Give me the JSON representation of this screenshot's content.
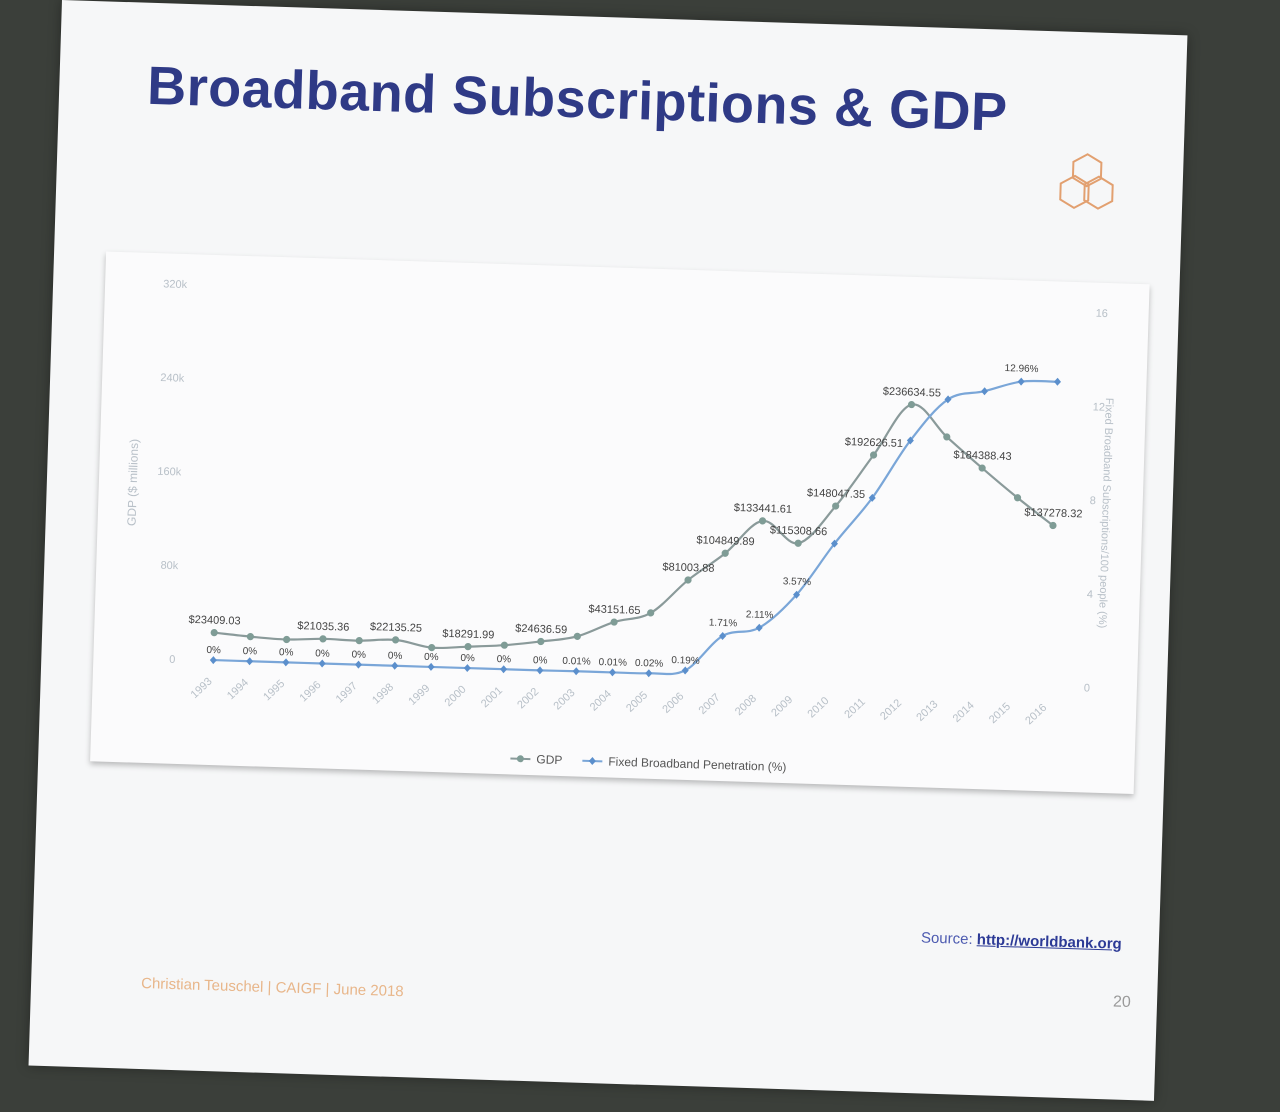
{
  "slide": {
    "title": "Broadband Subscriptions & GDP",
    "source_label": "Source:",
    "source_link": "http://worldbank.org",
    "footer": "Christian Teuschel | CAIGF | June 2018",
    "page_number": "20"
  },
  "colors": {
    "title": "#2f3a86",
    "gdp_line": "#8a9a9a",
    "gdp_marker": "#7f9c96",
    "broadband_line": "#7aa6d8",
    "broadband_marker": "#5b8fcc",
    "logo": "#e2a070"
  },
  "chart_data": {
    "type": "line",
    "title": "",
    "categories": [
      "1993",
      "1994",
      "1995",
      "1996",
      "1997",
      "1998",
      "1999",
      "2000",
      "2001",
      "2002",
      "2003",
      "2004",
      "2005",
      "2006",
      "2007",
      "2008",
      "2009",
      "2010",
      "2011",
      "2012",
      "2013",
      "2014",
      "2015",
      "2016"
    ],
    "y_left": {
      "label": "GDP ($ millions)",
      "ticks": [
        "0",
        "80k",
        "160k",
        "240k",
        "320k"
      ],
      "range": [
        0,
        320000
      ]
    },
    "y_right": {
      "label": "Fixed Broadband Subscriptions/100 people (%)",
      "ticks": [
        "0",
        "4",
        "8",
        "12",
        "16"
      ],
      "range": [
        0,
        16
      ]
    },
    "legend_position": "bottom",
    "grid": false,
    "series": [
      {
        "name": "GDP",
        "axis": "left",
        "values": [
          23409.03,
          21000,
          19500,
          21035.36,
          20500,
          22135.25,
          16500,
          18291.99,
          20500,
          24636.59,
          30000,
          43151.65,
          52000,
          81003.88,
          104849.89,
          133441.61,
          115308.66,
          148047.35,
          192626.51,
          236634.55,
          210000,
          184388.43,
          160000,
          137278.32
        ],
        "labels": [
          "$23409.03",
          "",
          "",
          "$21035.36",
          "",
          "$22135.25",
          "",
          "$18291.99",
          "",
          "$24636.59",
          "",
          "$43151.65",
          "",
          "$81003.88",
          "$104849.89",
          "$133441.61",
          "$115308.66",
          "$148047.35",
          "$192626.51",
          "$236634.55",
          "",
          "$184388.43",
          "",
          "$137278.32"
        ]
      },
      {
        "name": "Fixed Broadband Penetration (%)",
        "axis": "right",
        "values": [
          0,
          0,
          0,
          0,
          0,
          0,
          0,
          0,
          0,
          0,
          0.01,
          0.01,
          0.02,
          0.19,
          1.71,
          2.11,
          3.57,
          5.8,
          7.8,
          10.3,
          12.1,
          12.5,
          12.96,
          13.0
        ],
        "labels": [
          "0%",
          "0%",
          "0%",
          "0%",
          "0%",
          "0%",
          "0%",
          "0%",
          "0%",
          "0%",
          "0.01%",
          "0.01%",
          "0.02%",
          "0.19%",
          "1.71%",
          "2.11%",
          "3.57%",
          "",
          "",
          "",
          "",
          "",
          "12.96%",
          ""
        ]
      }
    ]
  }
}
